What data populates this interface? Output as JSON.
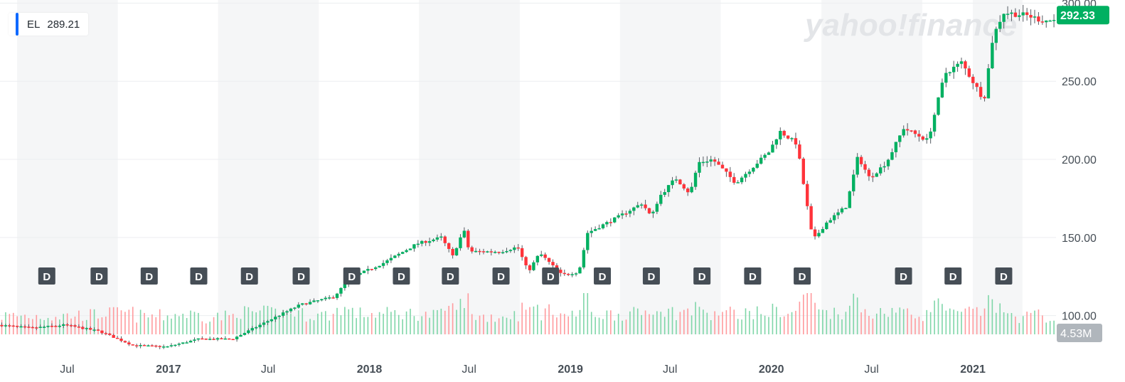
{
  "legend": {
    "symbol": "EL",
    "value": "289.21"
  },
  "watermark": "yahoo!finance",
  "colors": {
    "up": "#00b061",
    "down": "#ff333a",
    "legend_accent": "#0f69ff",
    "price_tag": "#00b061",
    "volume_tag": "#b0b6bc",
    "dividend_marker": "#464e56"
  },
  "chart_data": {
    "type": "candlestick",
    "interval": "weekly",
    "y_axis": {
      "ticks": [
        100,
        150,
        200,
        250,
        300
      ],
      "tick_labels": [
        "100.00",
        "150.00",
        "200.00",
        "250.00",
        "300.00"
      ],
      "range": [
        88,
        302
      ]
    },
    "x_axis": {
      "range": [
        "2016-03-01",
        "2021-06-01"
      ],
      "labels": [
        {
          "text": "Jul",
          "date": "2016-07-01",
          "major": false
        },
        {
          "text": "2017",
          "date": "2017-01-01",
          "major": true
        },
        {
          "text": "Jul",
          "date": "2017-07-01",
          "major": false
        },
        {
          "text": "2018",
          "date": "2018-01-01",
          "major": true
        },
        {
          "text": "Jul",
          "date": "2018-07-01",
          "major": false
        },
        {
          "text": "2019",
          "date": "2019-01-01",
          "major": true
        },
        {
          "text": "Jul",
          "date": "2019-07-01",
          "major": false
        },
        {
          "text": "2020",
          "date": "2020-01-01",
          "major": true
        },
        {
          "text": "Jul",
          "date": "2020-07-01",
          "major": false
        },
        {
          "text": "2021",
          "date": "2021-01-01",
          "major": true
        }
      ]
    },
    "shaded_periods": [
      [
        "2016-04-01",
        "2016-10-01"
      ],
      [
        "2017-04-01",
        "2017-10-01"
      ],
      [
        "2018-04-01",
        "2018-10-01"
      ],
      [
        "2019-04-01",
        "2019-10-01"
      ],
      [
        "2020-04-01",
        "2020-10-01"
      ],
      [
        "2021-01-01",
        "2021-04-01"
      ]
    ],
    "price_path": [
      [
        "2016-03-01",
        94
      ],
      [
        "2016-05-01",
        92
      ],
      [
        "2016-07-01",
        94
      ],
      [
        "2016-09-01",
        90
      ],
      [
        "2016-11-01",
        81
      ],
      [
        "2017-01-01",
        80
      ],
      [
        "2017-03-01",
        85
      ],
      [
        "2017-05-01",
        85
      ],
      [
        "2017-07-01",
        96
      ],
      [
        "2017-09-01",
        107
      ],
      [
        "2017-11-01",
        112
      ],
      [
        "2017-12-01",
        124
      ],
      [
        "2018-02-01",
        134
      ],
      [
        "2018-04-01",
        146
      ],
      [
        "2018-05-15",
        150
      ],
      [
        "2018-06-05",
        138
      ],
      [
        "2018-06-25",
        155
      ],
      [
        "2018-07-05",
        141
      ],
      [
        "2018-09-01",
        141
      ],
      [
        "2018-10-01",
        144
      ],
      [
        "2018-10-20",
        128
      ],
      [
        "2018-11-10",
        140
      ],
      [
        "2018-12-20",
        126
      ],
      [
        "2019-01-20",
        128
      ],
      [
        "2019-02-05",
        153
      ],
      [
        "2019-04-01",
        163
      ],
      [
        "2019-05-15",
        172
      ],
      [
        "2019-06-01",
        163
      ],
      [
        "2019-06-15",
        176
      ],
      [
        "2019-07-15",
        188
      ],
      [
        "2019-08-10",
        178
      ],
      [
        "2019-08-25",
        198
      ],
      [
        "2019-09-20",
        200
      ],
      [
        "2019-11-01",
        185
      ],
      [
        "2020-01-01",
        205
      ],
      [
        "2020-01-20",
        218
      ],
      [
        "2020-02-20",
        210
      ],
      [
        "2020-03-20",
        148
      ],
      [
        "2020-04-15",
        160
      ],
      [
        "2020-05-20",
        170
      ],
      [
        "2020-06-10",
        202
      ],
      [
        "2020-07-01",
        188
      ],
      [
        "2020-08-01",
        198
      ],
      [
        "2020-09-01",
        220
      ],
      [
        "2020-10-15",
        212
      ],
      [
        "2020-11-15",
        255
      ],
      [
        "2020-12-15",
        262
      ],
      [
        "2021-01-25",
        238
      ],
      [
        "2021-02-10",
        278
      ],
      [
        "2021-03-01",
        294
      ],
      [
        "2021-04-15",
        292
      ],
      [
        "2021-05-10",
        289
      ]
    ],
    "dividend_markers": [
      "2016-05-25",
      "2016-08-28",
      "2016-11-27",
      "2017-02-25",
      "2017-05-28",
      "2017-08-30",
      "2017-11-30",
      "2018-02-28",
      "2018-05-28",
      "2018-08-28",
      "2018-11-26",
      "2019-02-28",
      "2019-05-28",
      "2019-08-28",
      "2019-11-28",
      "2020-02-26",
      "2020-08-28",
      "2020-11-26",
      "2021-02-26"
    ],
    "last_price": 292.33,
    "last_volume": "4.53M"
  }
}
